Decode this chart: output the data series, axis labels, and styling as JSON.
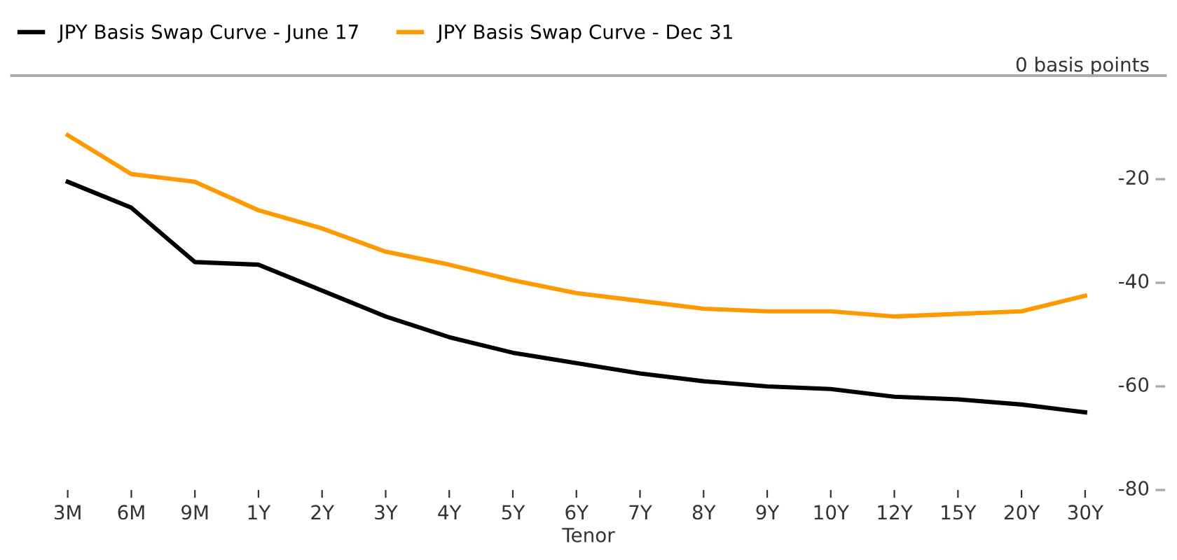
{
  "chart_data": {
    "type": "line",
    "xlabel": "Tenor",
    "categories": [
      "3M",
      "6M",
      "9M",
      "1Y",
      "2Y",
      "3Y",
      "4Y",
      "5Y",
      "6Y",
      "7Y",
      "8Y",
      "9Y",
      "10Y",
      "12Y",
      "15Y",
      "20Y",
      "30Y"
    ],
    "series": [
      {
        "name": "JPY Basis Swap Curve - June 17",
        "color": "#000000",
        "values": [
          -20.5,
          -25.5,
          -36,
          -36.5,
          -41.5,
          -46.5,
          -50.5,
          -53.5,
          -55.5,
          -57.5,
          -59,
          -60,
          -60.5,
          -62,
          -62.5,
          -63.5,
          -65
        ]
      },
      {
        "name": "JPY Basis Swap Curve - Dec 31",
        "color": "#ff9900",
        "values": [
          -11.5,
          -19,
          -20.5,
          -26,
          -29.5,
          -34,
          -36.5,
          -39.5,
          -42,
          -43.5,
          -45,
          -45.5,
          -45.5,
          -46.5,
          -46,
          -45.5,
          -42.5
        ]
      }
    ],
    "ylim": [
      -80,
      0
    ],
    "yticks": [
      {
        "value": 0,
        "label": "0 basis points"
      },
      -20,
      -40,
      -60,
      -80
    ],
    "grid": false,
    "legend": "top left",
    "marker": "none",
    "line_style": "solid"
  }
}
